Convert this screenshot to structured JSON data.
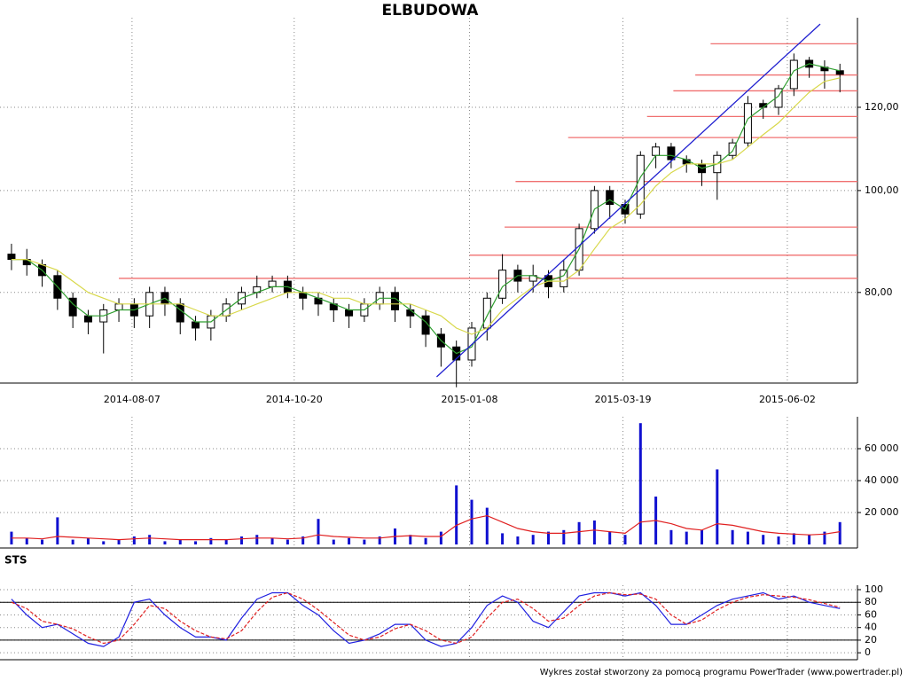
{
  "chart_data": [
    {
      "type": "candlestick",
      "title": "ELBUDOWA",
      "log_scale": true,
      "grid": true,
      "x": [
        "2014-06-13",
        "2014-06-20",
        "2014-06-27",
        "2014-07-04",
        "2014-07-11",
        "2014-07-18",
        "2014-07-25",
        "2014-08-01",
        "2014-08-08",
        "2014-08-15",
        "2014-08-22",
        "2014-08-29",
        "2014-09-05",
        "2014-09-12",
        "2014-09-19",
        "2014-09-26",
        "2014-10-03",
        "2014-10-10",
        "2014-10-17",
        "2014-10-24",
        "2014-10-31",
        "2014-11-07",
        "2014-11-14",
        "2014-11-21",
        "2014-11-28",
        "2014-12-05",
        "2014-12-12",
        "2014-12-19",
        "2014-12-26",
        "2015-01-02",
        "2015-01-09",
        "2015-01-16",
        "2015-01-23",
        "2015-01-30",
        "2015-02-06",
        "2015-02-13",
        "2015-02-20",
        "2015-02-27",
        "2015-03-06",
        "2015-03-13",
        "2015-03-20",
        "2015-03-27",
        "2015-04-03",
        "2015-04-10",
        "2015-04-17",
        "2015-04-24",
        "2015-05-01",
        "2015-05-08",
        "2015-05-15",
        "2015-05-22",
        "2015-05-29",
        "2015-06-05",
        "2015-06-12",
        "2015-06-19",
        "2015-06-26"
      ],
      "open": [
        87,
        86,
        85,
        83,
        79,
        76,
        75,
        77,
        78,
        76,
        80,
        78,
        75,
        74,
        76,
        78,
        80,
        81,
        82,
        80,
        79,
        78,
        77,
        76,
        78,
        80,
        77,
        76,
        73,
        71,
        69,
        74,
        79,
        84,
        82,
        83,
        81,
        84,
        92,
        100,
        97,
        95,
        108,
        110,
        107,
        106,
        104,
        108,
        111,
        121,
        120,
        125,
        133,
        131,
        130
      ],
      "high": [
        89,
        88,
        86,
        84,
        80,
        77,
        78,
        79,
        79,
        81,
        81,
        79,
        76,
        77,
        79,
        81,
        83,
        83,
        83,
        81,
        80,
        79,
        78,
        79,
        81,
        81,
        78,
        77,
        74,
        72,
        75,
        80,
        87,
        85,
        85,
        84,
        86,
        93,
        101,
        101,
        98,
        109,
        111,
        111,
        108,
        107,
        109,
        112,
        123,
        122,
        126,
        135,
        134,
        133,
        132
      ],
      "low": [
        84,
        83,
        81,
        77,
        74,
        73,
        70,
        75,
        74,
        74,
        76,
        73,
        72,
        72,
        75,
        77,
        79,
        80,
        79,
        77,
        76,
        75,
        74,
        75,
        77,
        75,
        74,
        71,
        68,
        65,
        68,
        72,
        78,
        80,
        80,
        79,
        80,
        83,
        91,
        94,
        93,
        94,
        105,
        105,
        104,
        101,
        98,
        107,
        110,
        117,
        118,
        123,
        128,
        125,
        124
      ],
      "close": [
        86,
        85,
        83,
        79,
        76,
        75,
        77,
        78,
        76,
        80,
        78,
        75,
        74,
        76,
        78,
        80,
        81,
        82,
        80,
        79,
        78,
        77,
        76,
        78,
        80,
        77,
        76,
        73,
        71,
        69,
        74,
        79,
        84,
        82,
        83,
        81,
        84,
        92,
        100,
        97,
        95,
        108,
        110,
        107,
        106,
        104,
        108,
        111,
        121,
        120,
        125,
        133,
        131,
        130,
        129
      ],
      "overlays": [
        {
          "color": "#2e9e2e",
          "values": [
            86,
            86,
            84,
            81,
            78,
            76,
            76,
            77,
            77,
            78,
            79,
            77,
            75,
            75,
            77,
            79,
            80,
            81,
            81,
            80,
            79,
            78,
            77,
            77,
            79,
            79,
            77,
            75,
            72,
            70,
            71,
            76,
            81,
            83,
            83,
            82,
            83,
            88,
            96,
            98,
            96,
            103,
            108,
            108,
            107,
            105,
            106,
            109,
            117,
            120,
            123,
            130,
            132,
            131,
            130
          ]
        },
        {
          "color": "#d8d84a",
          "values": [
            86,
            86,
            85,
            84,
            82,
            80,
            79,
            78,
            78,
            78,
            78,
            78,
            77,
            76,
            76,
            77,
            78,
            79,
            80,
            80,
            80,
            79,
            79,
            78,
            78,
            78,
            78,
            77,
            76,
            74,
            73,
            74,
            77,
            79,
            81,
            82,
            82,
            84,
            88,
            92,
            94,
            97,
            101,
            104,
            106,
            106,
            106,
            107,
            110,
            113,
            116,
            120,
            124,
            127,
            128
          ]
        }
      ],
      "levels_color": "#f07070",
      "levels": [
        {
          "start": "2014-08-01",
          "value": 82.5
        },
        {
          "start": "2015-01-08",
          "value": 86.8
        },
        {
          "start": "2015-01-24",
          "value": 92.3
        },
        {
          "start": "2015-01-29",
          "value": 102.0
        },
        {
          "start": "2015-02-22",
          "value": 112.3
        },
        {
          "start": "2015-03-30",
          "value": 117.6
        },
        {
          "start": "2015-04-11",
          "value": 124.4
        },
        {
          "start": "2015-04-21",
          "value": 128.8
        },
        {
          "start": "2015-04-28",
          "value": 137.9
        }
      ],
      "trendline": {
        "color": "#2020d0",
        "x": [
          "2014-12-24",
          "2015-06-17"
        ],
        "y": [
          66.5,
          144
        ]
      },
      "xlim": [
        "2014-06-11",
        "2015-07-04"
      ],
      "xticks": [
        "2014-08-07",
        "2014-10-20",
        "2015-01-08",
        "2015-03-19",
        "2015-06-02"
      ],
      "ylim": [
        65.6,
        146
      ],
      "yticks": [
        {
          "value": 80,
          "label": "80,00"
        },
        {
          "value": 100,
          "label": "100,00"
        },
        {
          "value": 120,
          "label": "120,00"
        }
      ]
    },
    {
      "type": "bar",
      "color": "#1010d0",
      "grid": true,
      "x": [
        "2014-06-13",
        "2014-06-20",
        "2014-06-27",
        "2014-07-04",
        "2014-07-11",
        "2014-07-18",
        "2014-07-25",
        "2014-08-01",
        "2014-08-08",
        "2014-08-15",
        "2014-08-22",
        "2014-08-29",
        "2014-09-05",
        "2014-09-12",
        "2014-09-19",
        "2014-09-26",
        "2014-10-03",
        "2014-10-10",
        "2014-10-17",
        "2014-10-24",
        "2014-10-31",
        "2014-11-07",
        "2014-11-14",
        "2014-11-21",
        "2014-11-28",
        "2014-12-05",
        "2014-12-12",
        "2014-12-19",
        "2014-12-26",
        "2015-01-02",
        "2015-01-09",
        "2015-01-16",
        "2015-01-23",
        "2015-01-30",
        "2015-02-06",
        "2015-02-13",
        "2015-02-20",
        "2015-02-27",
        "2015-03-06",
        "2015-03-13",
        "2015-03-20",
        "2015-03-27",
        "2015-04-03",
        "2015-04-10",
        "2015-04-17",
        "2015-04-24",
        "2015-05-01",
        "2015-05-08",
        "2015-05-15",
        "2015-05-22",
        "2015-05-29",
        "2015-06-05",
        "2015-06-12",
        "2015-06-19",
        "2015-06-26"
      ],
      "values": [
        8000,
        4000,
        3000,
        17000,
        3000,
        4000,
        2000,
        3000,
        5000,
        6000,
        2000,
        3000,
        2000,
        4000,
        3000,
        5000,
        6000,
        4000,
        3000,
        5000,
        16000,
        3000,
        4000,
        3000,
        5000,
        10000,
        6000,
        4000,
        8000,
        37000,
        28000,
        23000,
        7000,
        5000,
        6000,
        8000,
        9000,
        14000,
        15000,
        8000,
        6000,
        76000,
        30000,
        9000,
        8000,
        9000,
        47000,
        9000,
        8000,
        6000,
        5000,
        7000,
        6000,
        8000,
        14000
      ],
      "overlays": [
        {
          "color": "#e02020",
          "values": [
            4000,
            4000,
            3500,
            5000,
            4500,
            4000,
            3500,
            3000,
            3500,
            4000,
            3500,
            3000,
            3000,
            3000,
            3000,
            3500,
            4000,
            4000,
            3500,
            4000,
            6000,
            5000,
            4500,
            4000,
            4000,
            5000,
            5500,
            5000,
            5000,
            12000,
            16000,
            18000,
            14000,
            10000,
            8000,
            7000,
            7000,
            8000,
            9000,
            8000,
            7000,
            14000,
            15000,
            13000,
            10000,
            9000,
            13000,
            12000,
            10000,
            8000,
            7000,
            6500,
            6000,
            6500,
            8000
          ]
        }
      ],
      "ylim": [
        0,
        80000
      ],
      "yticks": [
        {
          "value": 20000,
          "label": "20 000"
        },
        {
          "value": 40000,
          "label": "40 000"
        },
        {
          "value": 60000,
          "label": "60 000"
        }
      ]
    },
    {
      "type": "line",
      "title": "STS",
      "x": [
        "2014-06-13",
        "2014-06-20",
        "2014-06-27",
        "2014-07-04",
        "2014-07-11",
        "2014-07-18",
        "2014-07-25",
        "2014-08-01",
        "2014-08-08",
        "2014-08-15",
        "2014-08-22",
        "2014-08-29",
        "2014-09-05",
        "2014-09-12",
        "2014-09-19",
        "2014-09-26",
        "2014-10-03",
        "2014-10-10",
        "2014-10-17",
        "2014-10-24",
        "2014-10-31",
        "2014-11-07",
        "2014-11-14",
        "2014-11-21",
        "2014-11-28",
        "2014-12-05",
        "2014-12-12",
        "2014-12-19",
        "2014-12-26",
        "2015-01-02",
        "2015-01-09",
        "2015-01-16",
        "2015-01-23",
        "2015-01-30",
        "2015-02-06",
        "2015-02-13",
        "2015-02-20",
        "2015-02-27",
        "2015-03-06",
        "2015-03-13",
        "2015-03-20",
        "2015-03-27",
        "2015-04-03",
        "2015-04-10",
        "2015-04-17",
        "2015-04-24",
        "2015-05-01",
        "2015-05-08",
        "2015-05-15",
        "2015-05-22",
        "2015-05-29",
        "2015-06-05",
        "2015-06-12",
        "2015-06-19",
        "2015-06-26"
      ],
      "overlays": [
        {
          "color": "#2020e0",
          "values": [
            85,
            60,
            40,
            45,
            30,
            15,
            10,
            25,
            80,
            85,
            60,
            40,
            25,
            25,
            20,
            55,
            85,
            95,
            95,
            75,
            60,
            35,
            15,
            20,
            30,
            45,
            45,
            20,
            10,
            15,
            40,
            75,
            90,
            80,
            50,
            40,
            65,
            90,
            95,
            95,
            90,
            95,
            75,
            45,
            45,
            60,
            75,
            85,
            90,
            95,
            85,
            90,
            80,
            75,
            70
          ]
        },
        {
          "color": "#e02020",
          "dashed": true,
          "values": [
            80,
            70,
            50,
            45,
            38,
            25,
            15,
            20,
            45,
            75,
            70,
            50,
            35,
            25,
            22,
            35,
            65,
            88,
            95,
            85,
            68,
            48,
            28,
            20,
            25,
            38,
            45,
            35,
            20,
            15,
            25,
            55,
            80,
            85,
            70,
            50,
            55,
            75,
            90,
            95,
            92,
            93,
            85,
            60,
            45,
            52,
            68,
            80,
            88,
            92,
            90,
            88,
            84,
            78,
            72
          ]
        }
      ],
      "hlines": [
        20,
        80
      ],
      "ylim": [
        -11,
        107
      ],
      "yticks": [
        0,
        20,
        40,
        60,
        80,
        100
      ]
    }
  ],
  "footer": "Wykres został stworzony za pomocą programu PowerTrader (www.powertrader.pl)"
}
